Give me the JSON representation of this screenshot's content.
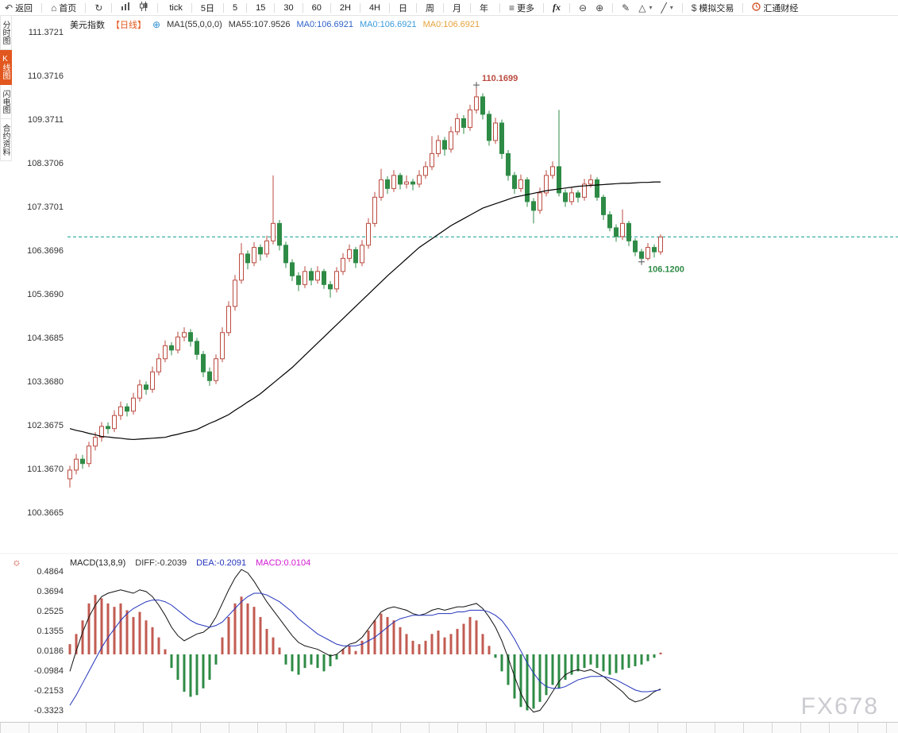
{
  "toolbar": {
    "back": "返回",
    "home": "首页",
    "periods": [
      "tick",
      "5日",
      "5",
      "15",
      "30",
      "60",
      "2H",
      "4H",
      "日",
      "周",
      "月",
      "年"
    ],
    "more": "更多",
    "fx": "fx",
    "sim_trade": "模拟交易",
    "brand": "汇通财经"
  },
  "sidebar": {
    "items": [
      {
        "label": "分时图",
        "active": false
      },
      {
        "label": "K线图",
        "active": true
      },
      {
        "label": "闪电图",
        "active": false
      },
      {
        "label": "合约资料",
        "active": false
      }
    ]
  },
  "legend": {
    "symbol": "美元指数",
    "period_tag": "【日线】",
    "ma_params": "MA1(55,0,0,0)",
    "ma55": "MA55:107.9526",
    "ma_values": [
      {
        "text": "MA0:106.6921",
        "color": "#2e62c9"
      },
      {
        "text": "MA0:106.6921",
        "color": "#3a9bdc"
      },
      {
        "text": "MA0:106.6921",
        "color": "#e6a23c"
      }
    ]
  },
  "macd_header": {
    "title": "MACD(13,8,9)",
    "diff": {
      "text": "DIFF:-0.2039",
      "color": "#333333"
    },
    "dea": {
      "text": "DEA:-0.2091",
      "color": "#2233bb"
    },
    "macd": {
      "text": "MACD:0.0104",
      "color": "#d018d0"
    }
  },
  "watermark": "FX678",
  "chart_data": {
    "type": "candlestick",
    "title": "美元指数 日线 (US Dollar Index, Daily)",
    "indicator": "MACD(13,8,9)",
    "price_ylim": [
      100.3665,
      111.3721
    ],
    "macd_ylim": [
      -0.3323,
      0.4864
    ],
    "grid": false,
    "last_price_line": 106.6921,
    "price_axis_labels": [
      "111.3721",
      "110.3716",
      "109.3711",
      "108.3706",
      "107.3701",
      "106.3696",
      "105.3690",
      "104.3685",
      "103.3680",
      "102.3675",
      "101.3670",
      "100.3665"
    ],
    "macd_axis_labels": [
      "0.4864",
      "0.3694",
      "0.2525",
      "0.1355",
      "0.0186",
      "-0.0984",
      "-0.2153",
      "-0.3323"
    ],
    "annotations": {
      "high": {
        "text": "110.1699",
        "index": 64,
        "price": 110.17
      },
      "low": {
        "text": "106.1200",
        "index": 90,
        "price": 106.12
      }
    },
    "colors": {
      "up": "#bb4a3f",
      "down": "#2e8b46",
      "ma": "#000000",
      "diff": "#111111",
      "dea": "#2233bb",
      "hist_pos": "#c25b52",
      "hist_neg": "#2e8b46",
      "last_line": "#0b9e8e"
    },
    "candles": [
      [
        101.15,
        101.45,
        100.95,
        101.35
      ],
      [
        101.35,
        101.72,
        101.25,
        101.6
      ],
      [
        101.6,
        101.7,
        101.38,
        101.5
      ],
      [
        101.5,
        102.0,
        101.42,
        101.9
      ],
      [
        101.9,
        102.22,
        101.8,
        102.1
      ],
      [
        102.1,
        102.45,
        102.0,
        102.35
      ],
      [
        102.35,
        102.44,
        102.18,
        102.3
      ],
      [
        102.3,
        102.72,
        102.22,
        102.6
      ],
      [
        102.6,
        102.92,
        102.5,
        102.8
      ],
      [
        102.8,
        102.88,
        102.58,
        102.7
      ],
      [
        102.7,
        103.12,
        102.62,
        103.0
      ],
      [
        103.0,
        103.42,
        102.92,
        103.3
      ],
      [
        103.3,
        103.38,
        103.08,
        103.2
      ],
      [
        103.2,
        103.72,
        103.12,
        103.6
      ],
      [
        103.6,
        104.02,
        103.52,
        103.9
      ],
      [
        103.9,
        104.32,
        103.82,
        104.2
      ],
      [
        104.2,
        104.28,
        103.98,
        104.1
      ],
      [
        104.1,
        104.52,
        104.02,
        104.4
      ],
      [
        104.4,
        104.62,
        104.3,
        104.5
      ],
      [
        104.5,
        104.58,
        104.18,
        104.3
      ],
      [
        104.3,
        104.38,
        103.88,
        104.0
      ],
      [
        104.0,
        104.08,
        103.48,
        103.6
      ],
      [
        103.6,
        103.7,
        103.28,
        103.4
      ],
      [
        103.4,
        104.0,
        103.32,
        103.9
      ],
      [
        103.9,
        104.62,
        103.82,
        104.5
      ],
      [
        104.5,
        105.22,
        104.42,
        105.1
      ],
      [
        105.1,
        105.82,
        105.0,
        105.7
      ],
      [
        105.7,
        106.55,
        105.62,
        106.3
      ],
      [
        106.3,
        106.38,
        105.95,
        106.1
      ],
      [
        106.1,
        106.57,
        106.02,
        106.45
      ],
      [
        106.45,
        106.52,
        106.15,
        106.3
      ],
      [
        106.3,
        106.72,
        106.22,
        106.6
      ],
      [
        106.6,
        108.1,
        106.52,
        107.0
      ],
      [
        107.0,
        107.08,
        106.38,
        106.5
      ],
      [
        106.5,
        106.58,
        105.98,
        106.1
      ],
      [
        106.1,
        106.18,
        105.68,
        105.8
      ],
      [
        105.8,
        105.88,
        105.45,
        105.6
      ],
      [
        105.6,
        106.02,
        105.52,
        105.9
      ],
      [
        105.9,
        105.98,
        105.58,
        105.7
      ],
      [
        105.7,
        106.02,
        105.62,
        105.9
      ],
      [
        105.9,
        105.96,
        105.5,
        105.6
      ],
      [
        105.6,
        105.68,
        105.3,
        105.5
      ],
      [
        105.5,
        106.0,
        105.42,
        105.9
      ],
      [
        105.9,
        106.32,
        105.82,
        106.2
      ],
      [
        106.2,
        106.52,
        106.12,
        106.4
      ],
      [
        106.4,
        106.46,
        105.98,
        106.1
      ],
      [
        106.1,
        106.62,
        106.02,
        106.5
      ],
      [
        106.5,
        107.12,
        106.42,
        107.0
      ],
      [
        107.0,
        107.72,
        106.92,
        107.6
      ],
      [
        107.6,
        108.25,
        107.52,
        108.0
      ],
      [
        108.0,
        108.08,
        107.68,
        107.8
      ],
      [
        107.8,
        108.22,
        107.72,
        108.1
      ],
      [
        108.1,
        108.16,
        107.78,
        107.9
      ],
      [
        107.9,
        108.1,
        107.8,
        107.95
      ],
      [
        107.95,
        108.02,
        107.76,
        107.9
      ],
      [
        107.9,
        108.22,
        107.82,
        108.1
      ],
      [
        108.1,
        108.42,
        108.02,
        108.3
      ],
      [
        108.3,
        109.0,
        108.22,
        108.6
      ],
      [
        108.6,
        109.02,
        108.52,
        108.9
      ],
      [
        108.9,
        108.98,
        108.55,
        108.7
      ],
      [
        108.7,
        109.22,
        108.62,
        109.1
      ],
      [
        109.1,
        109.52,
        109.02,
        109.4
      ],
      [
        109.4,
        109.48,
        109.05,
        109.2
      ],
      [
        109.2,
        109.72,
        109.12,
        109.6
      ],
      [
        109.6,
        110.17,
        109.52,
        109.9
      ],
      [
        109.9,
        109.98,
        109.38,
        109.5
      ],
      [
        109.5,
        109.58,
        108.78,
        108.9
      ],
      [
        108.9,
        109.42,
        108.82,
        109.3
      ],
      [
        109.3,
        109.38,
        108.48,
        108.6
      ],
      [
        108.6,
        108.68,
        107.98,
        108.1
      ],
      [
        108.1,
        108.18,
        107.68,
        107.8
      ],
      [
        107.8,
        108.12,
        107.72,
        108.0
      ],
      [
        108.0,
        108.06,
        107.38,
        107.5
      ],
      [
        107.5,
        107.58,
        107.0,
        107.3
      ],
      [
        107.3,
        107.82,
        107.22,
        107.7
      ],
      [
        107.7,
        108.22,
        107.62,
        108.1
      ],
      [
        108.1,
        108.42,
        108.02,
        108.3
      ],
      [
        108.3,
        109.6,
        107.62,
        107.7
      ],
      [
        107.7,
        107.78,
        107.38,
        107.5
      ],
      [
        107.5,
        107.82,
        107.42,
        107.7
      ],
      [
        107.7,
        107.76,
        107.48,
        107.6
      ],
      [
        107.6,
        108.02,
        107.52,
        107.9
      ],
      [
        107.9,
        108.12,
        107.82,
        108.0
      ],
      [
        108.0,
        108.06,
        107.52,
        107.6
      ],
      [
        107.6,
        107.66,
        107.08,
        107.2
      ],
      [
        107.2,
        107.28,
        106.82,
        106.9
      ],
      [
        106.9,
        106.98,
        106.58,
        106.7
      ],
      [
        106.7,
        107.32,
        106.62,
        107.0
      ],
      [
        107.0,
        107.06,
        106.48,
        106.6
      ],
      [
        106.6,
        106.66,
        106.25,
        106.35
      ],
      [
        106.35,
        106.42,
        106.12,
        106.2
      ],
      [
        106.2,
        106.55,
        106.15,
        106.45
      ],
      [
        106.45,
        106.52,
        106.22,
        106.35
      ],
      [
        106.35,
        106.75,
        106.28,
        106.69
      ]
    ],
    "ma55": [
      102.3,
      102.26,
      102.23,
      102.19,
      102.16,
      102.12,
      102.11,
      102.09,
      102.08,
      102.06,
      102.05,
      102.06,
      102.07,
      102.08,
      102.09,
      102.1,
      102.14,
      102.17,
      102.21,
      102.24,
      102.28,
      102.35,
      102.42,
      102.48,
      102.55,
      102.62,
      102.72,
      102.81,
      102.91,
      103.0,
      103.1,
      103.22,
      103.34,
      103.46,
      103.58,
      103.7,
      103.84,
      103.98,
      104.12,
      104.26,
      104.4,
      104.54,
      104.68,
      104.82,
      104.96,
      105.1,
      105.24,
      105.38,
      105.52,
      105.66,
      105.8,
      105.93,
      106.06,
      106.19,
      106.32,
      106.45,
      106.55,
      106.65,
      106.75,
      106.85,
      106.95,
      107.03,
      107.11,
      107.19,
      107.27,
      107.35,
      107.4,
      107.45,
      107.5,
      107.55,
      107.6,
      107.63,
      107.66,
      107.69,
      107.72,
      107.75,
      107.77,
      107.79,
      107.81,
      107.83,
      107.85,
      107.86,
      107.87,
      107.88,
      107.89,
      107.9,
      107.91,
      107.92,
      107.92,
      107.93,
      107.94,
      107.94,
      107.95,
      107.95
    ],
    "macd": {
      "diff": [
        -0.1,
        0.02,
        0.13,
        0.22,
        0.29,
        0.34,
        0.36,
        0.37,
        0.38,
        0.37,
        0.36,
        0.38,
        0.37,
        0.34,
        0.29,
        0.23,
        0.16,
        0.11,
        0.08,
        0.1,
        0.12,
        0.13,
        0.16,
        0.22,
        0.3,
        0.38,
        0.45,
        0.5,
        0.48,
        0.43,
        0.37,
        0.31,
        0.26,
        0.21,
        0.16,
        0.11,
        0.07,
        0.05,
        0.04,
        0.03,
        0.01,
        -0.01,
        0.0,
        0.03,
        0.06,
        0.07,
        0.1,
        0.15,
        0.2,
        0.25,
        0.27,
        0.28,
        0.27,
        0.26,
        0.24,
        0.23,
        0.24,
        0.26,
        0.27,
        0.26,
        0.27,
        0.28,
        0.28,
        0.29,
        0.3,
        0.27,
        0.22,
        0.16,
        0.08,
        -0.02,
        -0.13,
        -0.23,
        -0.3,
        -0.34,
        -0.33,
        -0.28,
        -0.22,
        -0.16,
        -0.12,
        -0.1,
        -0.09,
        -0.1,
        -0.09,
        -0.11,
        -0.13,
        -0.16,
        -0.19,
        -0.22,
        -0.26,
        -0.28,
        -0.27,
        -0.25,
        -0.22,
        -0.2039
      ],
      "dea": [
        -0.3,
        -0.24,
        -0.17,
        -0.1,
        -0.03,
        0.04,
        0.1,
        0.15,
        0.2,
        0.24,
        0.27,
        0.29,
        0.31,
        0.32,
        0.32,
        0.31,
        0.29,
        0.26,
        0.23,
        0.2,
        0.18,
        0.17,
        0.16,
        0.17,
        0.19,
        0.23,
        0.27,
        0.31,
        0.34,
        0.36,
        0.36,
        0.35,
        0.33,
        0.31,
        0.28,
        0.25,
        0.21,
        0.18,
        0.15,
        0.12,
        0.1,
        0.08,
        0.06,
        0.05,
        0.05,
        0.05,
        0.06,
        0.08,
        0.1,
        0.13,
        0.16,
        0.19,
        0.21,
        0.22,
        0.23,
        0.23,
        0.23,
        0.23,
        0.24,
        0.24,
        0.24,
        0.25,
        0.25,
        0.26,
        0.26,
        0.26,
        0.25,
        0.23,
        0.2,
        0.15,
        0.09,
        0.02,
        -0.05,
        -0.11,
        -0.16,
        -0.19,
        -0.2,
        -0.2,
        -0.19,
        -0.17,
        -0.15,
        -0.14,
        -0.13,
        -0.13,
        -0.13,
        -0.14,
        -0.15,
        -0.17,
        -0.19,
        -0.21,
        -0.22,
        -0.22,
        -0.215,
        -0.2091
      ],
      "hist": [
        0.06,
        0.12,
        0.2,
        0.3,
        0.35,
        0.33,
        0.3,
        0.28,
        0.3,
        0.26,
        0.22,
        0.25,
        0.2,
        0.16,
        0.1,
        0.03,
        -0.08,
        -0.15,
        -0.22,
        -0.25,
        -0.24,
        -0.2,
        -0.15,
        -0.06,
        0.1,
        0.22,
        0.3,
        0.34,
        0.3,
        0.28,
        0.22,
        0.15,
        0.1,
        0.04,
        -0.06,
        -0.1,
        -0.12,
        -0.08,
        -0.06,
        -0.08,
        -0.1,
        -0.07,
        -0.03,
        0.03,
        0.05,
        0.02,
        0.08,
        0.14,
        0.2,
        0.24,
        0.22,
        0.2,
        0.16,
        0.12,
        0.08,
        0.06,
        0.08,
        0.12,
        0.14,
        0.1,
        0.12,
        0.15,
        0.18,
        0.22,
        0.2,
        0.12,
        0.05,
        -0.02,
        -0.1,
        -0.18,
        -0.26,
        -0.31,
        -0.33,
        -0.32,
        -0.28,
        -0.24,
        -0.18,
        -0.2,
        -0.15,
        -0.12,
        -0.1,
        -0.08,
        -0.06,
        -0.08,
        -0.1,
        -0.12,
        -0.11,
        -0.09,
        -0.08,
        -0.07,
        -0.06,
        -0.04,
        -0.02,
        0.0104
      ]
    }
  }
}
